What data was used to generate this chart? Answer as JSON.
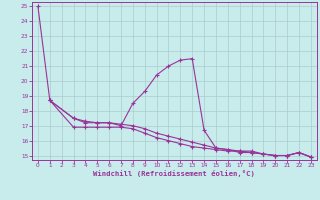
{
  "bg_color": "#c8ecec",
  "grid_color": "#aacccc",
  "line_color": "#993399",
  "xlabel": "Windchill (Refroidissement éolien,°C)",
  "xlim": [
    -0.5,
    23.5
  ],
  "ylim": [
    14.7,
    25.3
  ],
  "xticks": [
    0,
    1,
    2,
    3,
    4,
    5,
    6,
    7,
    8,
    9,
    10,
    11,
    12,
    13,
    14,
    15,
    16,
    17,
    18,
    19,
    20,
    21,
    22,
    23
  ],
  "yticks": [
    15,
    16,
    17,
    18,
    19,
    20,
    21,
    22,
    23,
    24,
    25
  ],
  "curve_diag_x": [
    0,
    1,
    3,
    4,
    5,
    6,
    7,
    8,
    9,
    10,
    11,
    12,
    13,
    14,
    15,
    16,
    17,
    18,
    19,
    20,
    21,
    22,
    23
  ],
  "curve_diag_y": [
    25.0,
    18.7,
    16.9,
    16.9,
    16.9,
    16.9,
    16.9,
    16.8,
    16.5,
    16.2,
    16.0,
    15.8,
    15.6,
    15.5,
    15.4,
    15.3,
    15.3,
    15.2,
    15.1,
    15.0,
    15.0,
    15.2,
    14.9
  ],
  "curve_flat_x": [
    1,
    3,
    4,
    5,
    6,
    7,
    8,
    9,
    10,
    11,
    12,
    13,
    14,
    15,
    16,
    17,
    18,
    19,
    20,
    21,
    22,
    23
  ],
  "curve_flat_y": [
    18.7,
    17.5,
    17.2,
    17.2,
    17.2,
    17.1,
    17.0,
    16.8,
    16.5,
    16.3,
    16.1,
    15.9,
    15.7,
    15.5,
    15.4,
    15.3,
    15.3,
    15.1,
    15.0,
    15.0,
    15.2,
    14.9
  ],
  "curve_hump_x": [
    1,
    3,
    4,
    5,
    6,
    7,
    8,
    9,
    10,
    11,
    12,
    13,
    14,
    15,
    16,
    17,
    18,
    19,
    20,
    21,
    22,
    23
  ],
  "curve_hump_y": [
    18.7,
    17.5,
    17.3,
    17.2,
    17.2,
    17.0,
    18.5,
    19.3,
    20.4,
    21.0,
    21.4,
    21.5,
    16.7,
    15.5,
    15.4,
    15.2,
    15.2,
    15.1,
    15.0,
    15.0,
    15.2,
    14.9
  ]
}
